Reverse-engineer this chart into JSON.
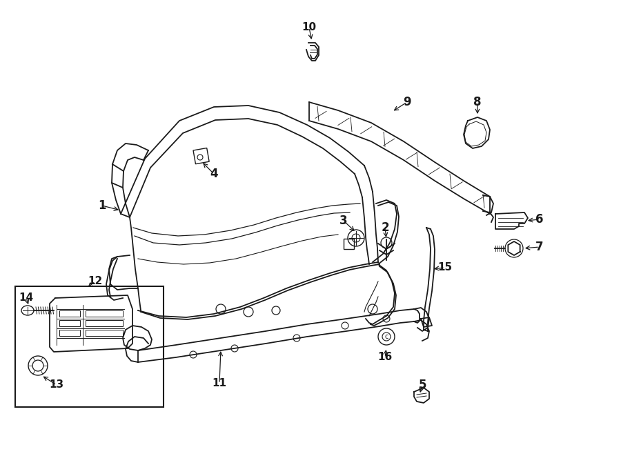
{
  "background_color": "#ffffff",
  "line_color": "#1a1a1a",
  "fig_width": 9.0,
  "fig_height": 6.61,
  "dpi": 100
}
